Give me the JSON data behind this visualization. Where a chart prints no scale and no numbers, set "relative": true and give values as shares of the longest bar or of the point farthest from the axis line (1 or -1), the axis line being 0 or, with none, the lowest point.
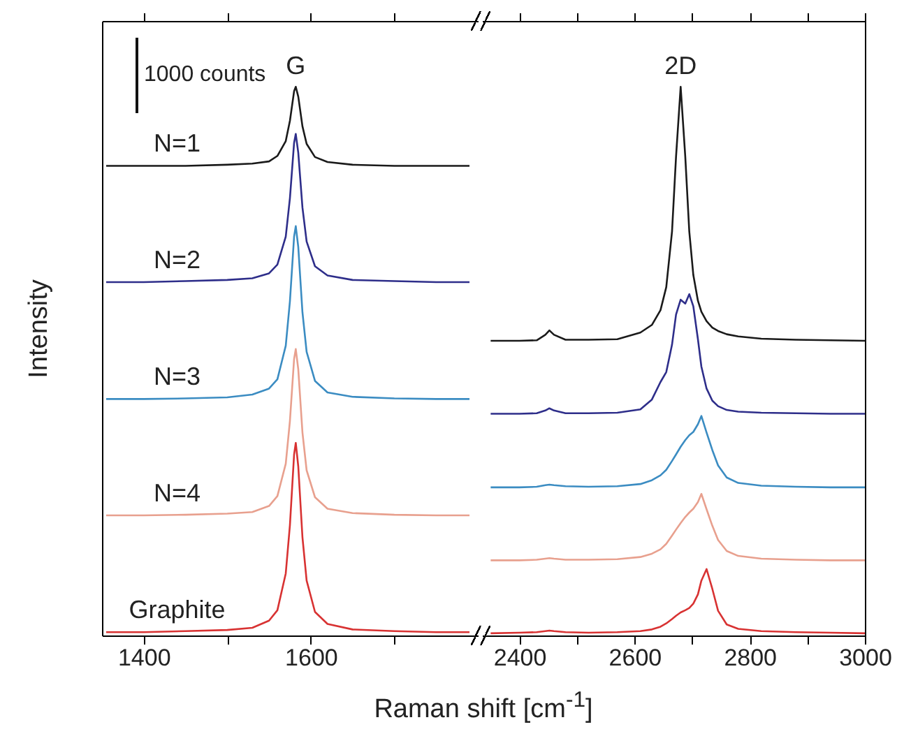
{
  "chart_data": [
    {
      "type": "line",
      "xlabel": "Raman shift [cm$^{-1}$]",
      "ylabel": "Intensity",
      "relative": true,
      "xlim": [
        1350,
        1800
      ],
      "xticks": [
        1400,
        {
          "value": 1500,
          "label": null
        },
        1600,
        {
          "value": 1700,
          "label": null
        }
      ],
      "x": [
        1355,
        1400,
        1450,
        1500,
        1530,
        1550,
        1560,
        1570,
        1575,
        1580,
        1582,
        1585,
        1590,
        1595,
        1605,
        1620,
        1650,
        1700,
        1750,
        1790
      ],
      "series": [
        {
          "name": "N=1",
          "color": "#1a1a1a",
          "values": [
            0.856,
            0.856,
            0.856,
            0.858,
            0.86,
            0.864,
            0.874,
            0.901,
            0.938,
            0.992,
            1.0,
            0.982,
            0.928,
            0.896,
            0.872,
            0.863,
            0.858,
            0.856,
            0.856,
            0.856
          ]
        },
        {
          "name": "N=2",
          "color": "#2e2e8a",
          "values": [
            0.644,
            0.644,
            0.646,
            0.648,
            0.651,
            0.66,
            0.676,
            0.727,
            0.797,
            0.898,
            0.914,
            0.88,
            0.78,
            0.718,
            0.673,
            0.656,
            0.648,
            0.646,
            0.644,
            0.644
          ]
        },
        {
          "name": "N=3",
          "color": "#3b8cc2",
          "values": [
            0.431,
            0.431,
            0.432,
            0.434,
            0.439,
            0.45,
            0.467,
            0.528,
            0.609,
            0.727,
            0.746,
            0.708,
            0.589,
            0.517,
            0.464,
            0.443,
            0.435,
            0.432,
            0.431,
            0.431
          ]
        },
        {
          "name": "N=4",
          "color": "#e8a08e",
          "values": [
            0.219,
            0.219,
            0.22,
            0.222,
            0.225,
            0.236,
            0.254,
            0.313,
            0.391,
            0.504,
            0.522,
            0.485,
            0.37,
            0.301,
            0.252,
            0.231,
            0.223,
            0.22,
            0.219,
            0.219
          ]
        },
        {
          "name": "Graphite",
          "color": "#d83232",
          "values": [
            0.006,
            0.006,
            0.008,
            0.01,
            0.014,
            0.027,
            0.046,
            0.113,
            0.201,
            0.33,
            0.351,
            0.308,
            0.179,
            0.1,
            0.043,
            0.021,
            0.011,
            0.008,
            0.006,
            0.006
          ]
        }
      ],
      "annotations": [
        {
          "text": "G",
          "x": 1582,
          "y": 1.0
        },
        "1000 counts"
      ]
    },
    {
      "type": "line",
      "relative": true,
      "xlim": [
        2335,
        3000
      ],
      "xticks": [
        2400,
        {
          "value": 2500,
          "label": null
        },
        2600,
        {
          "value": 2700,
          "label": null
        },
        2800,
        {
          "value": 2900,
          "label": null
        },
        3000
      ],
      "x": [
        2350,
        2400,
        2430,
        2445,
        2452,
        2460,
        2480,
        2520,
        2570,
        2610,
        2630,
        2645,
        2655,
        2665,
        2672,
        2680,
        2688,
        2695,
        2702,
        2710,
        2716,
        2725,
        2735,
        2745,
        2760,
        2780,
        2820,
        2880,
        2940,
        3000
      ],
      "series": [
        {
          "color": "#1a1a1a",
          "values": [
            0.537,
            0.537,
            0.538,
            0.548,
            0.556,
            0.548,
            0.539,
            0.539,
            0.54,
            0.552,
            0.566,
            0.593,
            0.635,
            0.736,
            0.873,
            1.0,
            0.873,
            0.736,
            0.657,
            0.61,
            0.59,
            0.573,
            0.561,
            0.555,
            0.549,
            0.545,
            0.541,
            0.539,
            0.538,
            0.537
          ]
        },
        {
          "color": "#2e2e8a",
          "values": [
            0.404,
            0.404,
            0.405,
            0.41,
            0.414,
            0.41,
            0.405,
            0.405,
            0.406,
            0.412,
            0.43,
            0.462,
            0.48,
            0.53,
            0.585,
            0.612,
            0.605,
            0.622,
            0.6,
            0.54,
            0.49,
            0.45,
            0.428,
            0.418,
            0.411,
            0.408,
            0.406,
            0.405,
            0.404,
            0.404
          ]
        },
        {
          "color": "#3b8cc2",
          "values": [
            0.27,
            0.27,
            0.271,
            0.274,
            0.275,
            0.274,
            0.272,
            0.271,
            0.272,
            0.276,
            0.283,
            0.292,
            0.302,
            0.318,
            0.33,
            0.344,
            0.356,
            0.365,
            0.371,
            0.385,
            0.4,
            0.37,
            0.338,
            0.31,
            0.288,
            0.278,
            0.273,
            0.271,
            0.27,
            0.27
          ]
        },
        {
          "color": "#e8a08e",
          "values": [
            0.137,
            0.137,
            0.138,
            0.14,
            0.141,
            0.14,
            0.138,
            0.138,
            0.139,
            0.143,
            0.149,
            0.157,
            0.167,
            0.182,
            0.193,
            0.205,
            0.216,
            0.224,
            0.231,
            0.243,
            0.258,
            0.23,
            0.2,
            0.174,
            0.154,
            0.145,
            0.14,
            0.138,
            0.137,
            0.137
          ]
        },
        {
          "color": "#d83232",
          "values": [
            0.004,
            0.005,
            0.006,
            0.008,
            0.009,
            0.008,
            0.006,
            0.005,
            0.006,
            0.008,
            0.011,
            0.016,
            0.022,
            0.03,
            0.036,
            0.042,
            0.046,
            0.05,
            0.058,
            0.075,
            0.1,
            0.121,
            0.085,
            0.045,
            0.02,
            0.012,
            0.008,
            0.006,
            0.005,
            0.004
          ]
        }
      ],
      "annotations": [
        {
          "text": "2D",
          "x": 2680,
          "y": 1.0
        }
      ]
    }
  ]
}
